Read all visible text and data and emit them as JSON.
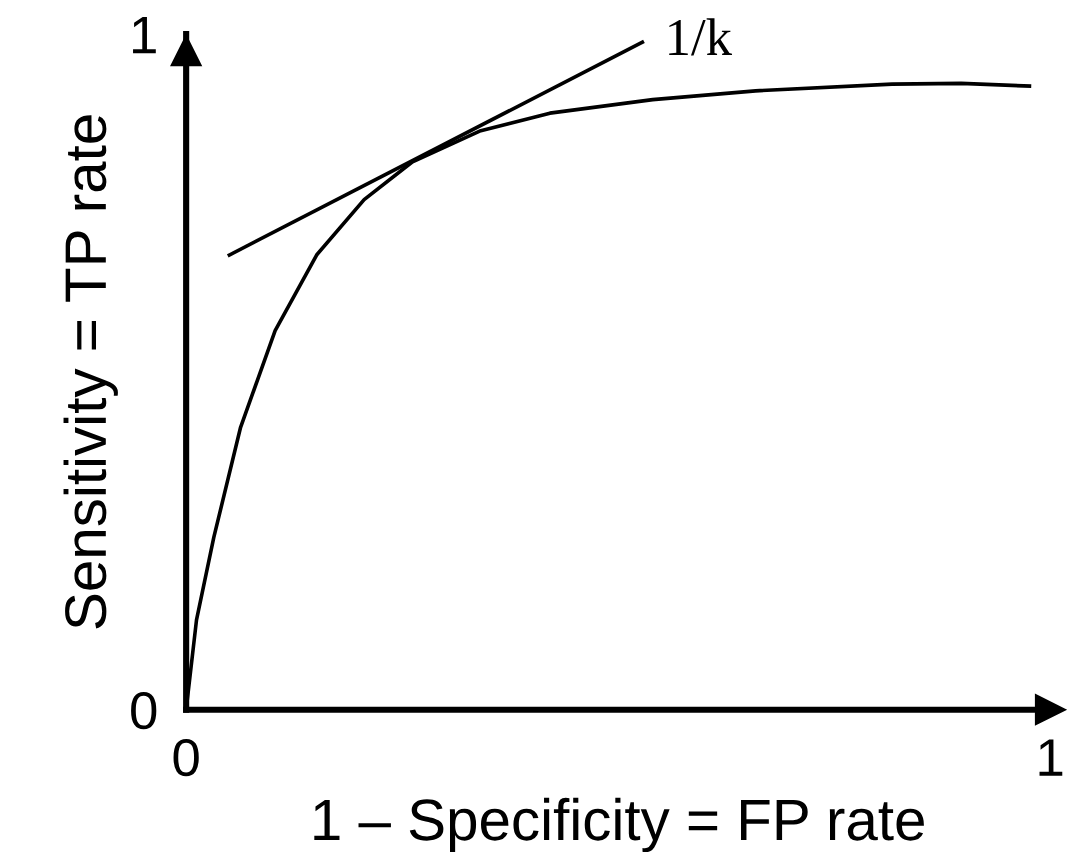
{
  "chart_data": {
    "type": "line",
    "xlabel": "1 – Specificity = FP rate",
    "ylabel": "Sensitivity = TP rate",
    "xlim": [
      0,
      1
    ],
    "ylim": [
      0,
      1
    ],
    "xticks": [
      0,
      1
    ],
    "yticks": [
      0,
      1
    ],
    "grid": false,
    "marker": "none",
    "line_style": "solid",
    "series": [
      {
        "color": "#000000",
        "x": [
          0,
          0.012,
          0.032,
          0.063,
          0.103,
          0.151,
          0.206,
          0.262,
          0.341,
          0.421,
          0.54,
          0.659,
          0.817,
          0.897,
          0.976
        ],
        "values": [
          0,
          0.133,
          0.255,
          0.418,
          0.561,
          0.673,
          0.755,
          0.811,
          0.857,
          0.883,
          0.903,
          0.916,
          0.926,
          0.927,
          0.923
        ]
      },
      {
        "color": "#000000",
        "x": [
          0.05,
          0.528
        ],
        "values": [
          0.673,
          0.988
        ]
      }
    ],
    "annotations": [
      {
        "text": "1/k",
        "x": 0.528,
        "y": 0.988
      }
    ]
  }
}
